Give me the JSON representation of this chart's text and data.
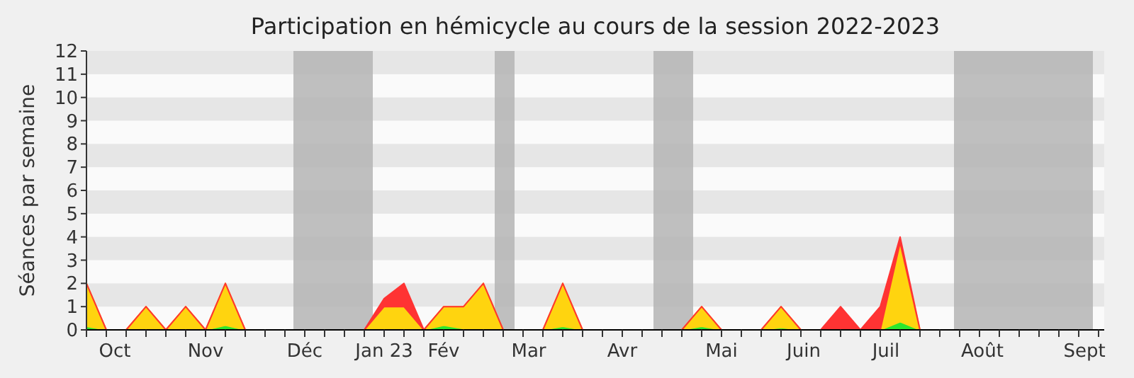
{
  "chart_data": {
    "type": "area",
    "title": "Participation en hémicycle au cours de la session 2022-2023",
    "ylabel": "Séances par semaine",
    "stacked": true,
    "x": [
      "2022-09-26",
      "2022-10-03",
      "2022-10-10",
      "2022-10-17",
      "2022-10-24",
      "2022-10-31",
      "2022-11-07",
      "2022-11-14",
      "2022-11-21",
      "2022-11-28",
      "2022-12-05",
      "2022-12-12",
      "2022-12-19",
      "2022-12-26",
      "2023-01-02",
      "2023-01-09",
      "2023-01-16",
      "2023-01-23",
      "2023-01-30",
      "2023-02-06",
      "2023-02-13",
      "2023-02-20",
      "2023-02-27",
      "2023-03-06",
      "2023-03-13",
      "2023-03-20",
      "2023-03-27",
      "2023-04-03",
      "2023-04-10",
      "2023-04-17",
      "2023-04-24",
      "2023-05-01",
      "2023-05-08",
      "2023-05-15",
      "2023-05-22",
      "2023-05-29",
      "2023-06-05",
      "2023-06-12",
      "2023-06-19",
      "2023-06-26",
      "2023-07-03",
      "2023-07-10",
      "2023-07-17",
      "2023-07-24",
      "2023-07-31",
      "2023-08-07",
      "2023-08-14",
      "2023-08-21",
      "2023-08-28",
      "2023-09-04",
      "2023-09-11",
      "2023-09-18"
    ],
    "series": [
      {
        "color": "#2ee62e",
        "values": [
          0.15,
          0,
          0,
          0.05,
          0,
          0.05,
          0,
          0.2,
          0,
          0,
          0,
          0,
          0,
          0,
          0,
          0.05,
          0.05,
          0,
          0.2,
          0.05,
          0.05,
          0,
          0,
          0,
          0.15,
          0,
          0,
          0,
          0,
          0,
          0,
          0.15,
          0,
          0,
          0,
          0.1,
          0,
          0,
          0,
          0,
          0,
          0.35,
          0,
          0,
          0,
          0,
          0,
          0,
          0,
          0,
          0,
          0
        ]
      },
      {
        "color": "#ffd40f",
        "values": [
          1.85,
          0,
          0,
          0.95,
          0,
          0.95,
          0,
          1.8,
          0,
          0,
          0,
          0,
          0,
          0,
          0,
          0.95,
          0.95,
          0,
          0.8,
          0.95,
          1.95,
          0,
          0,
          0,
          1.85,
          0,
          0,
          0,
          0,
          0,
          0,
          0.85,
          0,
          0,
          0,
          0.9,
          0,
          0,
          0,
          0,
          0,
          3.4,
          0,
          0,
          0,
          0,
          0,
          0,
          0,
          0,
          0,
          0
        ]
      },
      {
        "color": "#ff3333",
        "values": [
          0,
          0,
          0,
          0,
          0,
          0,
          0,
          0,
          0,
          0,
          0,
          0,
          0,
          0,
          0,
          0.35,
          1,
          0,
          0,
          0,
          0,
          0,
          0,
          0,
          0,
          0,
          0,
          0,
          0,
          0,
          0,
          0,
          0,
          0,
          0,
          0,
          0,
          0,
          1,
          0,
          1,
          0.25,
          0,
          0,
          0,
          0,
          0,
          0,
          0,
          0,
          0,
          0
        ]
      }
    ],
    "xlim": [
      "2022-09-26",
      "2023-09-20"
    ],
    "xticks": [
      {
        "value": "2022-09-26",
        "label": null
      },
      {
        "value": "2022-10-03",
        "label": null
      },
      {
        "value": "2022-10-10",
        "label": null
      },
      {
        "value": "2022-10-17",
        "label": null
      },
      {
        "value": "2022-10-24",
        "label": null
      },
      {
        "value": "2022-10-31",
        "label": null
      },
      {
        "value": "2022-11-07",
        "label": null
      },
      {
        "value": "2022-11-14",
        "label": null
      },
      {
        "value": "2022-11-21",
        "label": null
      },
      {
        "value": "2022-11-28",
        "label": null
      },
      {
        "value": "2022-12-05",
        "label": null
      },
      {
        "value": "2022-12-12",
        "label": null
      },
      {
        "value": "2022-12-19",
        "label": null
      },
      {
        "value": "2022-12-26",
        "label": null
      },
      {
        "value": "2023-01-02",
        "label": null
      },
      {
        "value": "2023-01-09",
        "label": null
      },
      {
        "value": "2023-01-16",
        "label": null
      },
      {
        "value": "2023-01-23",
        "label": null
      },
      {
        "value": "2023-01-30",
        "label": null
      },
      {
        "value": "2023-02-06",
        "label": null
      },
      {
        "value": "2023-02-13",
        "label": null
      },
      {
        "value": "2023-02-20",
        "label": null
      },
      {
        "value": "2023-02-27",
        "label": null
      },
      {
        "value": "2023-03-06",
        "label": null
      },
      {
        "value": "2023-03-13",
        "label": null
      },
      {
        "value": "2023-03-20",
        "label": null
      },
      {
        "value": "2023-03-27",
        "label": null
      },
      {
        "value": "2023-04-03",
        "label": null
      },
      {
        "value": "2023-04-10",
        "label": null
      },
      {
        "value": "2023-04-17",
        "label": null
      },
      {
        "value": "2023-04-24",
        "label": null
      },
      {
        "value": "2023-05-01",
        "label": null
      },
      {
        "value": "2023-05-08",
        "label": null
      },
      {
        "value": "2023-05-15",
        "label": null
      },
      {
        "value": "2023-05-22",
        "label": null
      },
      {
        "value": "2023-05-29",
        "label": null
      },
      {
        "value": "2023-06-05",
        "label": null
      },
      {
        "value": "2023-06-12",
        "label": null
      },
      {
        "value": "2023-06-19",
        "label": null
      },
      {
        "value": "2023-06-26",
        "label": null
      },
      {
        "value": "2023-07-03",
        "label": null
      },
      {
        "value": "2023-07-10",
        "label": null
      },
      {
        "value": "2023-07-17",
        "label": null
      },
      {
        "value": "2023-07-24",
        "label": null
      },
      {
        "value": "2023-07-31",
        "label": null
      },
      {
        "value": "2023-08-07",
        "label": null
      },
      {
        "value": "2023-08-14",
        "label": null
      },
      {
        "value": "2023-08-21",
        "label": null
      },
      {
        "value": "2023-08-28",
        "label": null
      },
      {
        "value": "2023-09-04",
        "label": null
      },
      {
        "value": "2023-09-11",
        "label": null
      },
      {
        "value": "2023-09-18",
        "label": null
      },
      {
        "value": "2022-10-06",
        "label": "Oct"
      },
      {
        "value": "2022-11-07",
        "label": "Nov"
      },
      {
        "value": "2022-12-12",
        "label": "Déc"
      },
      {
        "value": "2023-01-09",
        "label": "Jan 23"
      },
      {
        "value": "2023-01-30",
        "label": "Fév"
      },
      {
        "value": "2023-03-01",
        "label": "Mar"
      },
      {
        "value": "2023-04-03",
        "label": "Avr"
      },
      {
        "value": "2023-05-08",
        "label": "Mai"
      },
      {
        "value": "2023-06-06",
        "label": "Juin"
      },
      {
        "value": "2023-07-05",
        "label": "Juil"
      },
      {
        "value": "2023-08-08",
        "label": "Août"
      },
      {
        "value": "2023-09-13",
        "label": "Sept"
      }
    ],
    "ylim": [
      0,
      12
    ],
    "yticks": [
      0,
      1,
      2,
      3,
      4,
      5,
      6,
      7,
      8,
      9,
      10,
      11,
      12
    ],
    "bands": [
      {
        "axis": "x",
        "from": "2022-12-08",
        "to": "2023-01-05",
        "color": "#b4b4b4"
      },
      {
        "axis": "x",
        "from": "2023-02-17",
        "to": "2023-02-24",
        "color": "#b4b4b4"
      },
      {
        "axis": "x",
        "from": "2023-04-14",
        "to": "2023-04-28",
        "color": "#b4b4b4"
      },
      {
        "axis": "x",
        "from": "2023-07-29",
        "to": "2023-09-16",
        "color": "#b4b4b4"
      }
    ]
  }
}
